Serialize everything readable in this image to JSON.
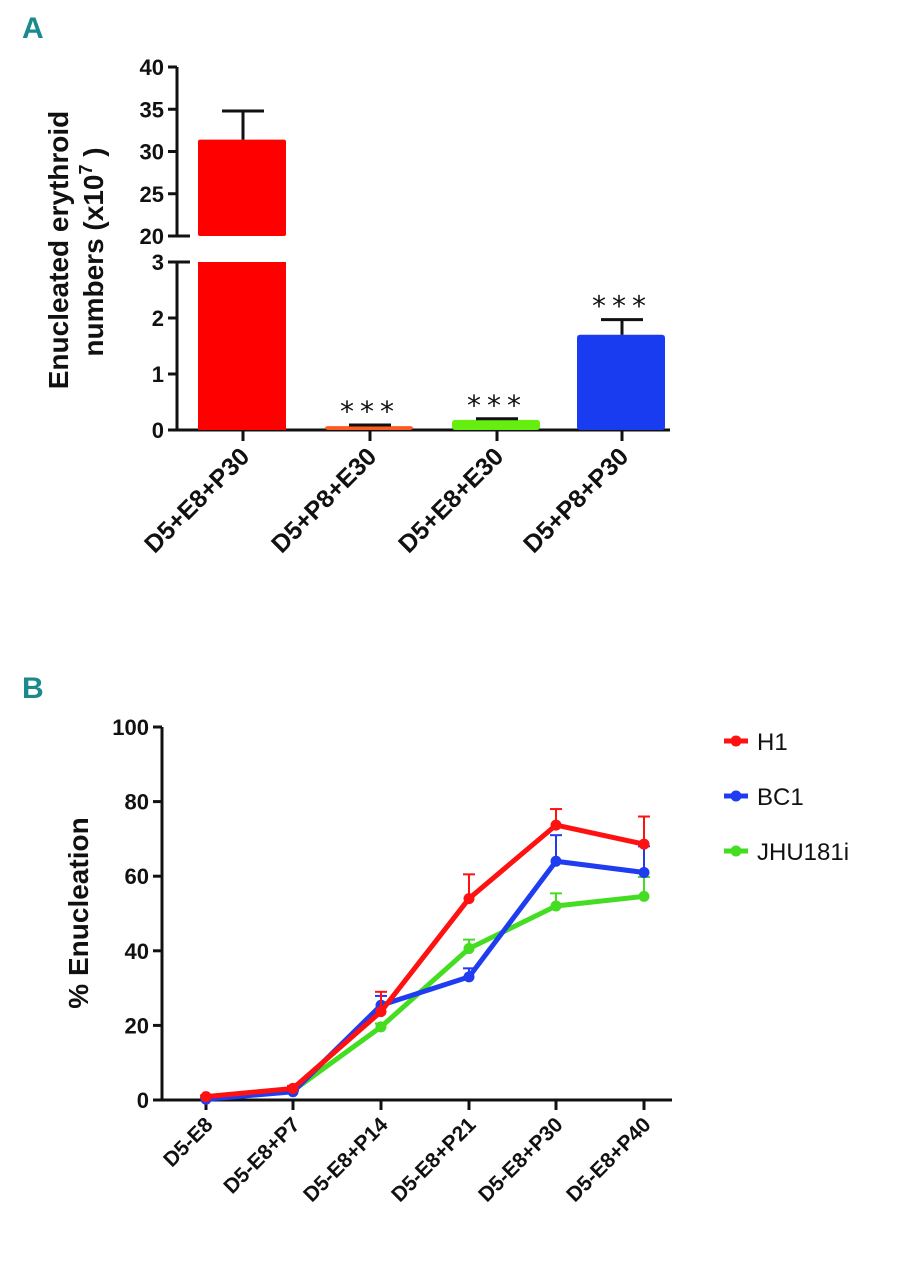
{
  "chart_data": [
    {
      "panel": "A",
      "type": "bar",
      "ylabel_line1": "Enucleated erythroid",
      "ylabel_line2": "numbers (x10",
      "ylabel_sup": "7",
      "ylabel_close": ")",
      "broken_axis": true,
      "ylim_lower": [
        0,
        3
      ],
      "ylim_upper": [
        20,
        40
      ],
      "yticks_lower": [
        0,
        1,
        2,
        3
      ],
      "yticks_upper": [
        20,
        25,
        30,
        35,
        40
      ],
      "categories": [
        "D5+E8+P30",
        "D5+P8+E30",
        "D5+E8+E30",
        "D5+P8+P30"
      ],
      "values": [
        31.4,
        0.07,
        0.18,
        1.7
      ],
      "error_upper": [
        34.8,
        0.09,
        0.2,
        1.97
      ],
      "colors": [
        "#ff0000",
        "#ff5a1f",
        "#66ee11",
        "#1a3cf0"
      ],
      "annotations": [
        "",
        "***",
        "***",
        "***"
      ]
    },
    {
      "panel": "B",
      "type": "line",
      "ylabel": "% Enucleation",
      "ylim": [
        0,
        100
      ],
      "yticks": [
        0,
        20,
        40,
        60,
        80,
        100
      ],
      "categories": [
        "D5-E8",
        "D5-E8+P7",
        "D5-E8+P14",
        "D5-E8+P21",
        "D5-E8+P30",
        "D5-E8+P40"
      ],
      "legend_position": "right",
      "series": [
        {
          "name": "H1",
          "color": "#ff1111",
          "values": [
            0.9,
            3.1,
            23.7,
            54,
            73.7,
            68.6
          ],
          "error_upper": [
            1.2,
            3.8,
            29,
            60.5,
            78,
            76
          ]
        },
        {
          "name": "BC1",
          "color": "#1f3cf0",
          "values": [
            0.2,
            2.2,
            25.4,
            33,
            64,
            61
          ],
          "error_upper": [
            0.4,
            2.6,
            27.9,
            35.3,
            71,
            68
          ]
        },
        {
          "name": "JHU181i",
          "color": "#44dd22",
          "values": [
            0.5,
            2.5,
            19.6,
            40.6,
            52,
            54.6
          ],
          "error_upper": [
            0.7,
            2.8,
            20.5,
            43,
            55.4,
            59.8
          ]
        }
      ]
    }
  ]
}
